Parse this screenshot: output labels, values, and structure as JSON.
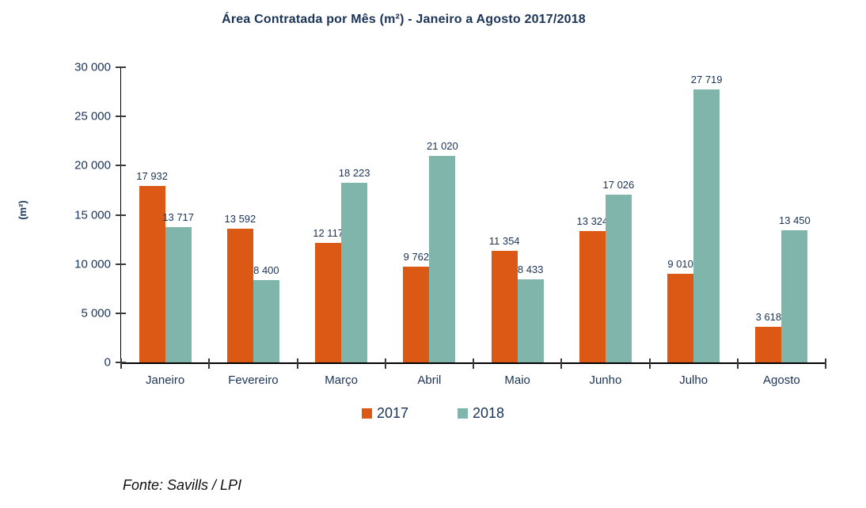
{
  "title": "Área Contratada por Mês (m²) - Janeiro a Agosto 2017/2018",
  "source_note": "Fonte: Savills / LPI",
  "colors": {
    "series_2017": "#DB5914",
    "series_2018": "#7FB5AB",
    "text_navy": "#1A3356",
    "axis": "#000000"
  },
  "legend": {
    "items": [
      {
        "label": "2017",
        "color": "#DB5914"
      },
      {
        "label": "2018",
        "color": "#7FB5AB"
      }
    ]
  },
  "chart_data": {
    "type": "bar",
    "title": "Área Contratada por Mês (m²) - Janeiro a Agosto 2017/2018",
    "xlabel": "",
    "ylabel": "(m²)",
    "ylim": [
      0,
      30000
    ],
    "yticks": [
      0,
      5000,
      10000,
      15000,
      20000,
      25000,
      30000
    ],
    "ytick_labels": [
      "0",
      "5 000",
      "10 000",
      "15 000",
      "20 000",
      "25 000",
      "30 000"
    ],
    "grid": false,
    "legend_position": "bottom-center",
    "categories": [
      "Janeiro",
      "Fevereiro",
      "Março",
      "Abril",
      "Maio",
      "Junho",
      "Julho",
      "Agosto"
    ],
    "series": [
      {
        "name": "2017",
        "color": "#DB5914",
        "values": [
          17932,
          13592,
          12117,
          9762,
          11354,
          13324,
          9010,
          3618
        ],
        "value_labels": [
          "17 932",
          "13 592",
          "12 117",
          "9 762",
          "11 354",
          "13 324",
          "9 010",
          "3 618"
        ]
      },
      {
        "name": "2018",
        "color": "#7FB5AB",
        "values": [
          13717,
          8400,
          18223,
          21020,
          8433,
          17026,
          27719,
          13450
        ],
        "value_labels": [
          "13 717",
          "8 400",
          "18 223",
          "21 020",
          "8 433",
          "17 026",
          "27 719",
          "13 450"
        ]
      }
    ]
  }
}
